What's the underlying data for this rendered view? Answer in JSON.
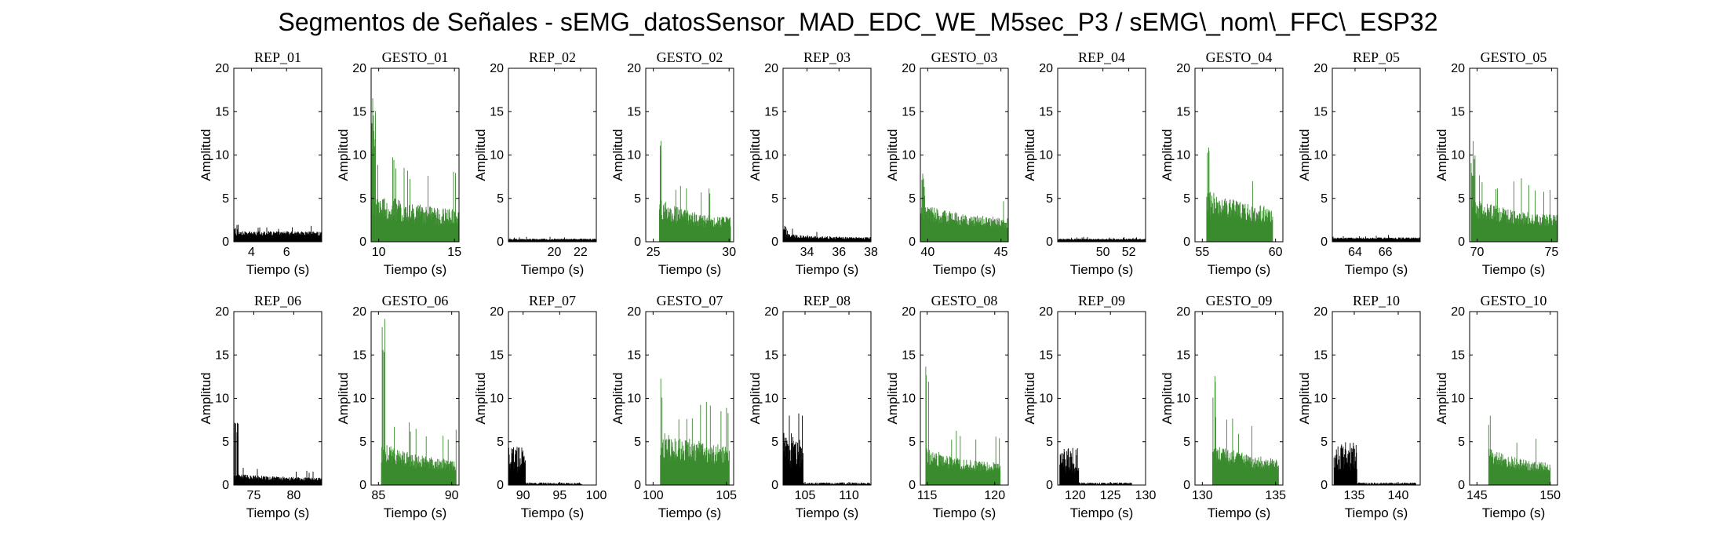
{
  "figure": {
    "title": "Segmentos de Señales - sEMG_datosSensor_MAD_EDC_WE_M5sec_P3 / sEMG\\_nom\\_FFC\\_ESP32"
  },
  "colors": {
    "rep": "#000000",
    "gesture": "#3a8a2e",
    "axis": "#000000"
  },
  "chart_data": [
    {
      "type": "bar",
      "subtitle": "REP_01",
      "kind": "rep",
      "xlim": [
        3,
        8
      ],
      "ylim": [
        0,
        20
      ],
      "xticks": [
        4,
        6
      ],
      "yticks": [
        0,
        5,
        10,
        15,
        20
      ],
      "xlabel": "Tiempo (s)",
      "ylabel": "Amplitud",
      "signal": {
        "start": 3,
        "end": 8,
        "base": 0.7,
        "noise": 0.5,
        "peak": 2.3,
        "decay": 0
      }
    },
    {
      "type": "bar",
      "subtitle": "GESTO_01",
      "kind": "gesture",
      "xlim": [
        9.5,
        15.3
      ],
      "ylim": [
        0,
        20
      ],
      "xticks": [
        10,
        15
      ],
      "yticks": [
        0,
        5,
        10,
        15,
        20
      ],
      "xlabel": "Tiempo (s)",
      "ylabel": "Amplitud",
      "signal": {
        "start": 9.5,
        "end": 15.3,
        "base": 2.8,
        "noise": 3.2,
        "peak": 17,
        "decay": 0.4
      }
    },
    {
      "type": "bar",
      "subtitle": "REP_02",
      "kind": "rep",
      "xlim": [
        16.5,
        23.2
      ],
      "ylim": [
        0,
        20
      ],
      "xticks": [
        20,
        22
      ],
      "yticks": [
        0,
        5,
        10,
        15,
        20
      ],
      "xlabel": "Tiempo (s)",
      "ylabel": "Amplitud",
      "signal": {
        "start": 16.5,
        "end": 23.2,
        "base": 0.2,
        "noise": 0.15,
        "peak": 0.4,
        "decay": 0
      }
    },
    {
      "type": "bar",
      "subtitle": "GESTO_02",
      "kind": "gesture",
      "xlim": [
        24.5,
        30.3
      ],
      "ylim": [
        0,
        20
      ],
      "xticks": [
        25,
        30
      ],
      "yticks": [
        0,
        5,
        10,
        15,
        20
      ],
      "xlabel": "Tiempo (s)",
      "ylabel": "Amplitud",
      "signal": {
        "start": 25.4,
        "end": 30.1,
        "base": 2.6,
        "noise": 2.5,
        "peak": 12.8,
        "decay": 0.6
      }
    },
    {
      "type": "bar",
      "subtitle": "REP_03",
      "kind": "rep",
      "xlim": [
        32.5,
        38
      ],
      "ylim": [
        0,
        20
      ],
      "xticks": [
        34,
        36,
        38
      ],
      "yticks": [
        0,
        5,
        10,
        15,
        20
      ],
      "xlabel": "Tiempo (s)",
      "ylabel": "Amplitud",
      "signal": {
        "start": 32.5,
        "end": 38,
        "base": 0.5,
        "noise": 0.5,
        "peak": 2.2,
        "decay": 0.8
      }
    },
    {
      "type": "bar",
      "subtitle": "GESTO_03",
      "kind": "gesture",
      "xlim": [
        39.5,
        45.5
      ],
      "ylim": [
        0,
        20
      ],
      "xticks": [
        40,
        45
      ],
      "yticks": [
        0,
        5,
        10,
        15,
        20
      ],
      "xlabel": "Tiempo (s)",
      "ylabel": "Amplitud",
      "signal": {
        "start": 39.5,
        "end": 45.5,
        "base": 2.4,
        "noise": 2.0,
        "peak": 9.3,
        "decay": 0.4
      }
    },
    {
      "type": "bar",
      "subtitle": "REP_04",
      "kind": "rep",
      "xlim": [
        46.5,
        53.3
      ],
      "ylim": [
        0,
        20
      ],
      "xticks": [
        50,
        52
      ],
      "yticks": [
        0,
        5,
        10,
        15,
        20
      ],
      "xlabel": "Tiempo (s)",
      "ylabel": "Amplitud",
      "signal": {
        "start": 46.5,
        "end": 53.3,
        "base": 0.2,
        "noise": 0.15,
        "peak": 0.4,
        "decay": 0
      }
    },
    {
      "type": "bar",
      "subtitle": "GESTO_04",
      "kind": "gesture",
      "xlim": [
        54.5,
        60.5
      ],
      "ylim": [
        0,
        20
      ],
      "xticks": [
        55,
        60
      ],
      "yticks": [
        0,
        5,
        10,
        15,
        20
      ],
      "xlabel": "Tiempo (s)",
      "ylabel": "Amplitud",
      "signal": {
        "start": 55.3,
        "end": 59.8,
        "base": 3.0,
        "noise": 3.0,
        "peak": 11.5,
        "decay": 0.3
      }
    },
    {
      "type": "bar",
      "subtitle": "REP_05",
      "kind": "rep",
      "xlim": [
        62.5,
        68.3
      ],
      "ylim": [
        0,
        20
      ],
      "xticks": [
        64,
        66
      ],
      "yticks": [
        0,
        5,
        10,
        15,
        20
      ],
      "xlabel": "Tiempo (s)",
      "ylabel": "Amplitud",
      "signal": {
        "start": 62.5,
        "end": 68.3,
        "base": 0.3,
        "noise": 0.2,
        "peak": 0.6,
        "decay": 0
      }
    },
    {
      "type": "bar",
      "subtitle": "GESTO_05",
      "kind": "gesture",
      "xlim": [
        69.5,
        75.4
      ],
      "ylim": [
        0,
        20
      ],
      "xticks": [
        70,
        75
      ],
      "yticks": [
        0,
        5,
        10,
        15,
        20
      ],
      "xlabel": "Tiempo (s)",
      "ylabel": "Amplitud",
      "signal": {
        "start": 69.6,
        "end": 75.4,
        "base": 2.8,
        "noise": 2.5,
        "peak": 13.2,
        "decay": 0.5
      }
    },
    {
      "type": "bar",
      "subtitle": "REP_06",
      "kind": "rep",
      "xlim": [
        72.5,
        83.5
      ],
      "ylim": [
        0,
        20
      ],
      "xticks": [
        75,
        80
      ],
      "yticks": [
        0,
        5,
        10,
        15,
        20
      ],
      "xlabel": "Tiempo (s)",
      "ylabel": "Amplitud",
      "signal": {
        "start": 72.5,
        "end": 83.5,
        "base": 0.7,
        "noise": 0.6,
        "peak": 7.5,
        "decay": 0.35
      }
    },
    {
      "type": "bar",
      "subtitle": "GESTO_06",
      "kind": "gesture",
      "xlim": [
        84.5,
        90.5
      ],
      "ylim": [
        0,
        20
      ],
      "xticks": [
        85,
        90
      ],
      "yticks": [
        0,
        5,
        10,
        15,
        20
      ],
      "xlabel": "Tiempo (s)",
      "ylabel": "Amplitud",
      "signal": {
        "start": 85.2,
        "end": 90.3,
        "base": 2.6,
        "noise": 2.4,
        "peak": 19.8,
        "decay": 0.5
      }
    },
    {
      "type": "bar",
      "subtitle": "REP_07",
      "kind": "rep",
      "xlim": [
        88,
        100
      ],
      "ylim": [
        0,
        20
      ],
      "xticks": [
        90,
        95,
        100
      ],
      "yticks": [
        0,
        5,
        10,
        15,
        20
      ],
      "xlabel": "Tiempo (s)",
      "ylabel": "Amplitud",
      "signal": {
        "start": 88,
        "end": 98,
        "base": 0.2,
        "noise": 0.15,
        "peak": 5.3,
        "decay": 0.1,
        "burst_end": 90.3,
        "burst": 3.5
      }
    },
    {
      "type": "bar",
      "subtitle": "GESTO_07",
      "kind": "gesture",
      "xlim": [
        99.5,
        105.5
      ],
      "ylim": [
        0,
        20
      ],
      "xticks": [
        100,
        105
      ],
      "yticks": [
        0,
        5,
        10,
        15,
        20
      ],
      "xlabel": "Tiempo (s)",
      "ylabel": "Amplitud",
      "signal": {
        "start": 100.5,
        "end": 105.2,
        "base": 3.0,
        "noise": 3.2,
        "peak": 12.7,
        "decay": 0.2
      }
    },
    {
      "type": "bar",
      "subtitle": "REP_08",
      "kind": "rep",
      "xlim": [
        102.5,
        112.5
      ],
      "ylim": [
        0,
        20
      ],
      "xticks": [
        105,
        110
      ],
      "yticks": [
        0,
        5,
        10,
        15,
        20
      ],
      "xlabel": "Tiempo (s)",
      "ylabel": "Amplitud",
      "signal": {
        "start": 102.5,
        "end": 112.5,
        "base": 0.2,
        "noise": 0.15,
        "peak": 8.5,
        "decay": 0,
        "burst_end": 104.8,
        "burst": 5.0
      }
    },
    {
      "type": "bar",
      "subtitle": "GESTO_08",
      "kind": "gesture",
      "xlim": [
        114.5,
        121
      ],
      "ylim": [
        0,
        20
      ],
      "xticks": [
        115,
        120
      ],
      "yticks": [
        0,
        5,
        10,
        15,
        20
      ],
      "xlabel": "Tiempo (s)",
      "ylabel": "Amplitud",
      "signal": {
        "start": 114.9,
        "end": 120.4,
        "base": 2.4,
        "noise": 2.2,
        "peak": 17.3,
        "decay": 0.6
      }
    },
    {
      "type": "bar",
      "subtitle": "REP_09",
      "kind": "rep",
      "xlim": [
        117.5,
        130
      ],
      "ylim": [
        0,
        20
      ],
      "xticks": [
        120,
        125,
        130
      ],
      "yticks": [
        0,
        5,
        10,
        15,
        20
      ],
      "xlabel": "Tiempo (s)",
      "ylabel": "Amplitud",
      "signal": {
        "start": 117.8,
        "end": 128,
        "base": 0.2,
        "noise": 0.15,
        "peak": 4.8,
        "decay": 0,
        "burst_end": 120.5,
        "burst": 3.3
      }
    },
    {
      "type": "bar",
      "subtitle": "GESTO_09",
      "kind": "gesture",
      "xlim": [
        129.5,
        135.5
      ],
      "ylim": [
        0,
        20
      ],
      "xticks": [
        130,
        135
      ],
      "yticks": [
        0,
        5,
        10,
        15,
        20
      ],
      "xlabel": "Tiempo (s)",
      "ylabel": "Amplitud",
      "signal": {
        "start": 130.7,
        "end": 135.2,
        "base": 2.8,
        "noise": 2.4,
        "peak": 13.7,
        "decay": 0.5
      }
    },
    {
      "type": "bar",
      "subtitle": "REP_10",
      "kind": "rep",
      "xlim": [
        132.5,
        142.5
      ],
      "ylim": [
        0,
        20
      ],
      "xticks": [
        135,
        140
      ],
      "yticks": [
        0,
        5,
        10,
        15,
        20
      ],
      "xlabel": "Tiempo (s)",
      "ylabel": "Amplitud",
      "signal": {
        "start": 132.7,
        "end": 142,
        "base": 0.2,
        "noise": 0.15,
        "peak": 5.8,
        "decay": 0,
        "burst_end": 135.3,
        "burst": 3.8
      }
    },
    {
      "type": "bar",
      "subtitle": "GESTO_10",
      "kind": "gesture",
      "xlim": [
        144.5,
        150.5
      ],
      "ylim": [
        0,
        20
      ],
      "xticks": [
        145,
        150
      ],
      "yticks": [
        0,
        5,
        10,
        15,
        20
      ],
      "xlabel": "Tiempo (s)",
      "ylabel": "Amplitud",
      "signal": {
        "start": 145.8,
        "end": 150.0,
        "base": 2.4,
        "noise": 2.0,
        "peak": 9.8,
        "decay": 0.5
      }
    }
  ]
}
